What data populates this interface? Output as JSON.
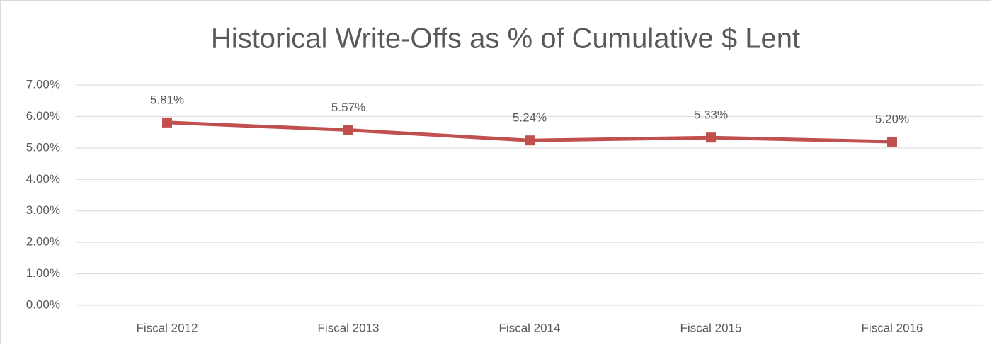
{
  "chart_data": {
    "type": "line",
    "title": "Historical Write-Offs as % of Cumulative $ Lent",
    "categories": [
      "Fiscal 2012",
      "Fiscal 2013",
      "Fiscal 2014",
      "Fiscal 2015",
      "Fiscal 2016"
    ],
    "series": [
      {
        "name": "Write-Offs",
        "color": "#c0504d",
        "values": [
          5.81,
          5.57,
          5.24,
          5.33,
          5.2
        ],
        "value_labels": [
          "5.81%",
          "5.57%",
          "5.24%",
          "5.33%",
          "5.20%"
        ]
      }
    ],
    "ylim": [
      0,
      7
    ],
    "yticks": [
      {
        "value": 0,
        "label": "0.00%"
      },
      {
        "value": 1,
        "label": "1.00%"
      },
      {
        "value": 2,
        "label": "2.00%"
      },
      {
        "value": 3,
        "label": "3.00%"
      },
      {
        "value": 4,
        "label": "4.00%"
      },
      {
        "value": 5,
        "label": "5.00%"
      },
      {
        "value": 6,
        "label": "6.00%"
      },
      {
        "value": 7,
        "label": "7.00%"
      }
    ],
    "grid": true
  }
}
